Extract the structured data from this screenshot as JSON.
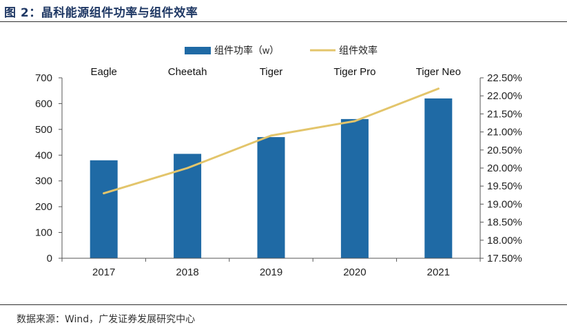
{
  "figure": {
    "title": "图 2：晶科能源组件功率与组件效率",
    "source": "数据来源：Wind，广发证券发展研究中心"
  },
  "colors": {
    "bar": "#1f6aa5",
    "line": "#e3c56b",
    "axis": "#555555",
    "title": "#1f3864"
  },
  "chart_data": {
    "type": "bar",
    "title": "",
    "categories": [
      "2017",
      "2018",
      "2019",
      "2020",
      "2021"
    ],
    "series": [
      {
        "name": "组件功率（w）",
        "type": "bar",
        "axis": "left",
        "values": [
          380,
          405,
          470,
          540,
          620
        ]
      },
      {
        "name": "组件效率",
        "type": "line",
        "axis": "right",
        "values": [
          19.3,
          20.0,
          20.9,
          21.3,
          22.2
        ]
      }
    ],
    "bar_annotations": [
      "Eagle",
      "Cheetah",
      "Tiger",
      "Tiger Pro",
      "Tiger Neo"
    ],
    "left_axis": {
      "min": 0,
      "max": 700,
      "step": 100,
      "ticks": [
        "0",
        "100",
        "200",
        "300",
        "400",
        "500",
        "600",
        "700"
      ]
    },
    "right_axis": {
      "min": 17.5,
      "max": 22.5,
      "step": 0.5,
      "ticks": [
        "17.50%",
        "18.00%",
        "18.50%",
        "19.00%",
        "19.50%",
        "20.00%",
        "20.50%",
        "21.00%",
        "21.50%",
        "22.00%",
        "22.50%"
      ]
    },
    "grid": false,
    "legend_position": "top-center"
  }
}
